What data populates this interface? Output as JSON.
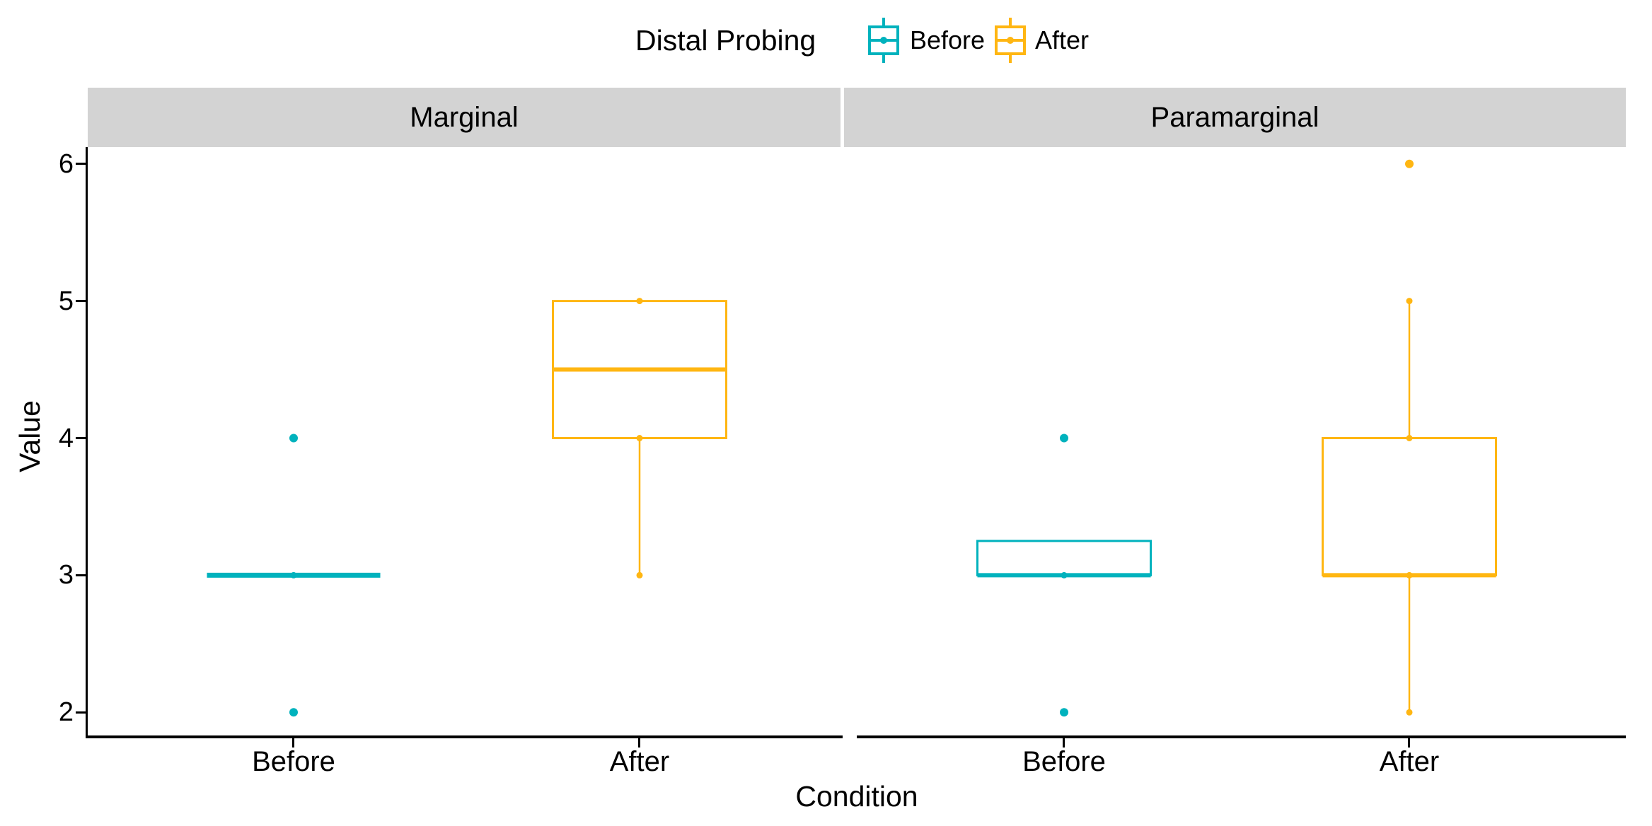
{
  "chart_data": {
    "type": "boxplot",
    "title": "",
    "xlabel": "Condition",
    "ylabel": "Value",
    "ylim": [
      1.8,
      6.2
    ],
    "y_ticks_display": [
      6,
      5,
      4,
      3,
      2
    ],
    "grid": "off",
    "categories": [
      "Before",
      "After"
    ],
    "legend": {
      "title": "Distal Probing",
      "position": "top-center",
      "entries": [
        {
          "label": "Before",
          "color": "#00B2BD"
        },
        {
          "label": "After",
          "color": "#FFB612"
        }
      ]
    },
    "facets": [
      {
        "label": "Marginal",
        "boxes": [
          {
            "condition": "Before",
            "series": "Before",
            "color": "#00B2BD",
            "q1": 3,
            "median": 3,
            "q3": 3,
            "whisker_low": 3,
            "whisker_high": 3,
            "outliers": [
              4,
              2
            ],
            "points": [
              3
            ]
          },
          {
            "condition": "After",
            "series": "After",
            "color": "#FFB612",
            "q1": 4,
            "median": 4.5,
            "q3": 5,
            "whisker_low": 3,
            "whisker_high": 5,
            "outliers": [],
            "points": [
              5,
              4,
              3
            ]
          }
        ]
      },
      {
        "label": "Paramarginal",
        "boxes": [
          {
            "condition": "Before",
            "series": "Before",
            "color": "#00B2BD",
            "q1": 3,
            "median": 3,
            "q3": 3.25,
            "whisker_low": 3,
            "whisker_high": 3.25,
            "outliers": [
              4,
              2
            ],
            "points": [
              3
            ]
          },
          {
            "condition": "After",
            "series": "After",
            "color": "#FFB612",
            "q1": 3,
            "median": 3,
            "q3": 4,
            "whisker_low": 2,
            "whisker_high": 5,
            "outliers": [
              6
            ],
            "points": [
              5,
              4,
              3,
              2
            ]
          }
        ]
      }
    ]
  }
}
